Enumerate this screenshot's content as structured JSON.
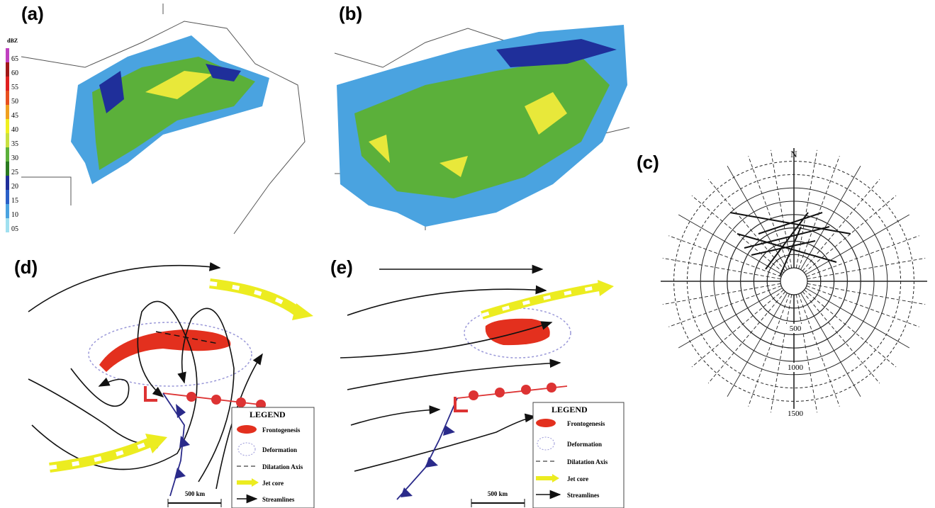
{
  "panels": {
    "a": {
      "label": "(a)",
      "scale_title": "dBZ",
      "scale_ticks": [
        "65",
        "60",
        "55",
        "50",
        "45",
        "40",
        "35",
        "30",
        "25",
        "20",
        "15",
        "10",
        "05"
      ]
    },
    "b": {
      "label": "(b)"
    },
    "c": {
      "label": "(c)",
      "north": "N",
      "rings": [
        "500",
        "1000",
        "1500"
      ]
    },
    "d": {
      "label": "(d)",
      "legend": {
        "title": "LEGEND",
        "items": [
          "Frontogenesis",
          "Deformation",
          "Dilatation Axis",
          "Jet core",
          "Streamlines"
        ]
      },
      "scale": "500 km"
    },
    "e": {
      "label": "(e)",
      "legend": {
        "title": "LEGEND",
        "items": [
          "Frontogenesis",
          "Deformation",
          "Dilatation Axis",
          "Jet core",
          "Streamlines"
        ]
      },
      "scale": "500 km"
    }
  }
}
